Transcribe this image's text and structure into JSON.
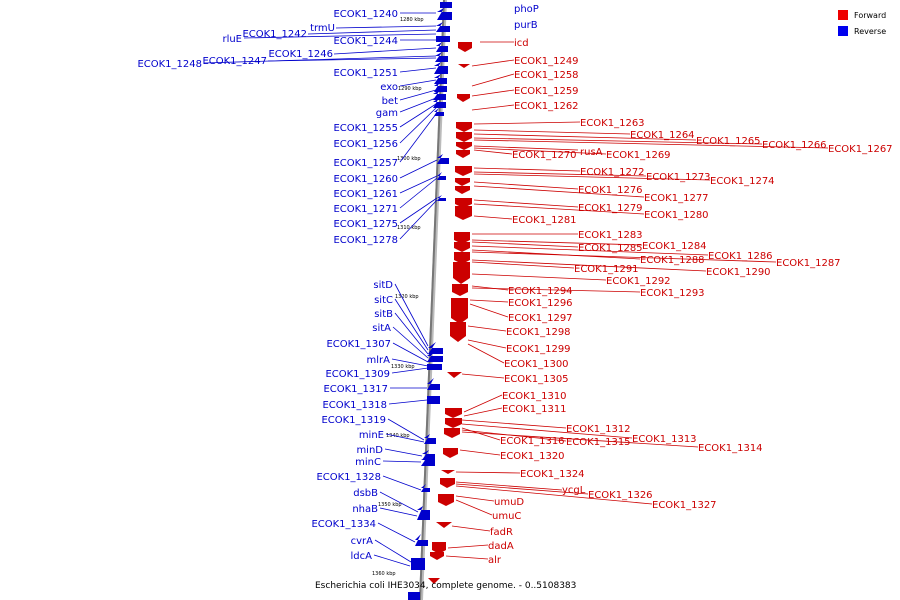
{
  "caption": "Escherichia coli IHE3034, complete genome. - 0..5108383",
  "legend": [
    {
      "label": "Forward",
      "color": "#ee0000"
    },
    {
      "label": "Reverse",
      "color": "#0000ee"
    }
  ],
  "ticks": [
    "1280 kbp",
    "1290 kbp",
    "1300 kbp",
    "1310 kbp",
    "1320 kbp",
    "1330 kbp",
    "1340 kbp",
    "1350 kbp",
    "1360 kbp"
  ],
  "reverse_genes": [
    "ECOK1_1240",
    "trmU",
    "ECOK1_1242",
    "rluE",
    "ECOK1_1244",
    "ECOK1_1246",
    "ECOK1_1248",
    "ECOK1_1247",
    "ECOK1_1251",
    "exo",
    "bet",
    "gam",
    "ECOK1_1255",
    "ECOK1_1256",
    "ECOK1_1257",
    "ECOK1_1260",
    "ECOK1_1261",
    "ECOK1_1271",
    "ECOK1_1275",
    "ECOK1_1278",
    "sitD",
    "sitC",
    "sitB",
    "sitA",
    "ECOK1_1307",
    "mlrA",
    "ECOK1_1309",
    "ECOK1_1317",
    "ECOK1_1318",
    "ECOK1_1319",
    "minE",
    "minD",
    "minC",
    "ECOK1_1328",
    "dsbB",
    "nhaB",
    "ECOK1_1334",
    "cvrA",
    "ldcA"
  ],
  "forward_genes": [
    "phoP",
    "purB",
    "icd",
    "ECOK1_1249",
    "ECOK1_1258",
    "ECOK1_1259",
    "ECOK1_1262",
    "ECOK1_1263",
    "ECOK1_1264",
    "ECOK1_1265",
    "ECOK1_1266",
    "ECOK1_1267",
    "ECOK1_1270",
    "rusA",
    "ECOK1_1269",
    "ECOK1_1272",
    "ECOK1_1273",
    "ECOK1_1274",
    "ECOK1_1276",
    "ECOK1_1277",
    "ECOK1_1279",
    "ECOK1_1280",
    "ECOK1_1281",
    "ECOK1_1283",
    "ECOK1_1284",
    "ECOK1_1285",
    "ECOK1_1286",
    "ECOK1_1288",
    "ECOK1_1287",
    "ECOK1_1291",
    "ECOK1_1290",
    "ECOK1_1292",
    "ECOK1_1294",
    "ECOK1_1293",
    "ECOK1_1296",
    "ECOK1_1297",
    "ECOK1_1298",
    "ECOK1_1299",
    "ECOK1_1300",
    "ECOK1_1305",
    "ECOK1_1310",
    "ECOK1_1311",
    "ECOK1_1312",
    "ECOK1_1313",
    "ECOK1_1316",
    "ECOK1_1315",
    "ECOK1_1314",
    "ECOK1_1320",
    "ECOK1_1324",
    "ycgL",
    "ECOK1_1326",
    "ECOK1_1327",
    "umuD",
    "umuC",
    "fadR",
    "dadA",
    "alr"
  ]
}
